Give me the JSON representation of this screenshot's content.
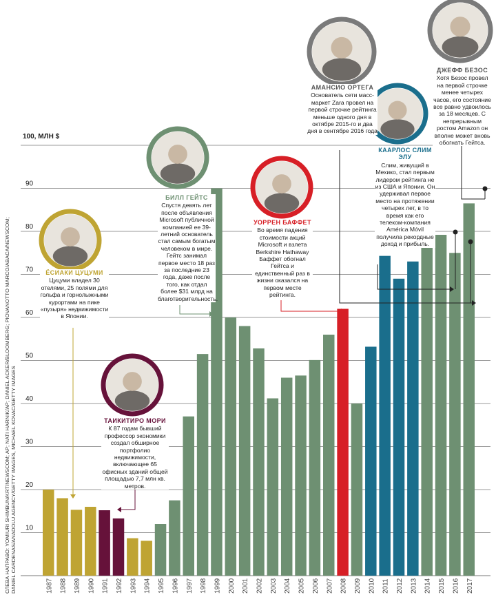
{
  "chart_data": {
    "type": "bar",
    "ylabel": "100, МЛН $",
    "ylim": [
      0,
      100
    ],
    "yticks": [
      10,
      20,
      30,
      40,
      50,
      60,
      70,
      80,
      90
    ],
    "categories": [
      "1987",
      "1988",
      "1989",
      "1990",
      "1991",
      "1992",
      "1993",
      "1994",
      "1995",
      "1996",
      "1997",
      "1998",
      "1999",
      "2000",
      "2001",
      "2002",
      "2003",
      "2004",
      "2005",
      "2006",
      "2007",
      "2008",
      "2009",
      "2010",
      "2011",
      "2012",
      "2013",
      "2014",
      "2015",
      "2016",
      "2017"
    ],
    "values": [
      20,
      18,
      15.3,
      16,
      15.2,
      13.3,
      8.7,
      8.1,
      12,
      17.5,
      37,
      51.5,
      90,
      60,
      58,
      52.8,
      41.2,
      46,
      46.5,
      50.1,
      56,
      62,
      40,
      53.2,
      74.3,
      69,
      73,
      76.5,
      79.2,
      75,
      86.5
    ],
    "colors": [
      "#bfa433",
      "#bfa433",
      "#bfa433",
      "#bfa433",
      "#66123a",
      "#66123a",
      "#bfa433",
      "#bfa433",
      "#6e9072",
      "#6e9072",
      "#6e9072",
      "#6e9072",
      "#6e9072",
      "#6e9072",
      "#6e9072",
      "#6e9072",
      "#6e9072",
      "#6e9072",
      "#6e9072",
      "#6e9072",
      "#6e9072",
      "#d71f26",
      "#6e9072",
      "#1a6e8c",
      "#1a6e8c",
      "#1a6e8c",
      "#1a6e8c",
      "#6e9072",
      "#6e9072",
      "#6e9072",
      "#6e9072"
    ]
  },
  "palette": {
    "tsutsumi": "#bfa433",
    "mori": "#66123a",
    "gates": "#6e9072",
    "buffett": "#d71f26",
    "slim": "#1a6e8c",
    "ortega": "#8c8c8c",
    "bezos": "#8c8c8c"
  },
  "credits": {
    "line1": "СЛЕВА НАПРАВО: YOMIURI SHIMBUN/KRT/NEWSCOM; AP; NATI HARNIK/AP; DANIEL ACKER/BLOOMBERG; PIOVANOTTO MARCO/ABACA/NEWSCOM;",
    "line2": "DANIEL CARDENAS/ANADOLU AGENCY/GETTY IMAGES, MICHAEL KOVAC/GETTY IMAGES"
  },
  "annotations": {
    "tsutsumi": {
      "name": "ЁСИАКИ ЦУЦУМИ",
      "text": "Цуцуми владел 30 отелями, 25 полями для гольфа и горнолыжными курортами на пике «пузыря» недвижимости в Японии.",
      "photo": "portrait-icon"
    },
    "mori": {
      "name": "ТАИКИТИРО МОРИ",
      "text": "К 87 годам бывший профессор экономики создал обширное портфолио недвижимости, включающее 65 офисных зданий общей площадью 7,7 млн кв. метров.",
      "photo": "portrait-icon"
    },
    "gates": {
      "name": "БИЛЛ ГЕЙТС",
      "text": "Спустя девять лет после объявления Microsoft публичной компанией ее 39-летний основатель стал самым богатым человеком в мире. Гейтс занимал первое место 18 раз за последние 23 года, даже после того, как отдал более $31 млрд на благотворительность.",
      "photo": "portrait-icon"
    },
    "buffett": {
      "name": "УОРРЕН БАФФЕТ",
      "text": "Во время падения стоимости акций Microsoft и взлета Berkshire Hathaway Баффет обогнал Гейтса и единственный раз в жизни оказался на первом месте рейтинга.",
      "photo": "portrait-icon"
    },
    "ortega": {
      "name": "АМАНСИО ОРТЕГА",
      "text": "Основатель сети масс-маркет Zara провел на первой строчке рейтинга меньше одного дня в октябре 2015-го и два дня в сентябре 2016 года",
      "photo": "portrait-icon"
    },
    "slim": {
      "name": "КААРЛОС СЛИМ ЭЛУ",
      "text": "Слим, живущий в Мехико, стал первым лидером рейтинга не из США и Японии. Он удерживал первое место на протяжении четырех лет, в то время как его телеком-компания América Móvil получила рекордные доход и прибыль.",
      "photo": "portrait-icon"
    },
    "bezos": {
      "name": "ДЖЕФФ БЕЗОС",
      "text": "Хотя Безос провел на первой строчке менее четырех часов, его состояние все равно удвоилось за 18 месяцев. С непрерывным ростом Amazon он вполне может вновь обогнать Гейтса.",
      "photo": "portrait-icon"
    }
  }
}
